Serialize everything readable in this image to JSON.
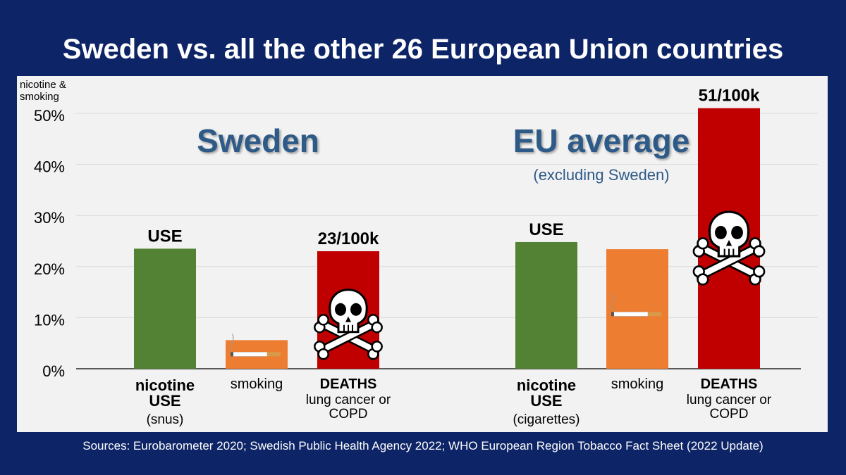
{
  "title": "Sweden vs. all the other 26 European Union countries",
  "sources": "Sources:  Eurobarometer 2020; Swedish Public Health Agency 2022; WHO European Region Tobacco Fact Sheet (2022 Update)",
  "colors": {
    "background": "#0d2466",
    "panel": "#f2f2f2",
    "use": "#548235",
    "smoking": "#ed7d31",
    "deaths": "#c00000",
    "group_title": "#2e5a88"
  },
  "chart_data": {
    "type": "bar",
    "ylabel": "nicotine & smoking",
    "ylim": [
      0,
      55
    ],
    "yticks": [
      0,
      10,
      20,
      30,
      40,
      50
    ],
    "ytick_labels": [
      "0%",
      "10%",
      "20%",
      "30%",
      "40%",
      "50%"
    ],
    "groups": [
      {
        "name": "Sweden",
        "subtitle": "",
        "bars": [
          {
            "key": "use",
            "value": 23.5,
            "top_label": "USE",
            "xlabel_bold": "nicotine USE",
            "xlabel_sub": "(snus)",
            "color": "#548235",
            "icon": "none"
          },
          {
            "key": "smoking",
            "value": 5.6,
            "top_label": "",
            "xlabel_bold": "",
            "xlabel_plain": "smoking",
            "xlabel_sub": "",
            "color": "#ed7d31",
            "icon": "cigarette-icon"
          },
          {
            "key": "deaths",
            "value": 23,
            "top_label": "23/100k",
            "xlabel_bold": "DEATHS",
            "xlabel_sub": "lung cancer or COPD",
            "color": "#c00000",
            "icon": "skull-crossbones-icon"
          }
        ]
      },
      {
        "name": "EU average",
        "subtitle": "(excluding Sweden)",
        "bars": [
          {
            "key": "use",
            "value": 24.8,
            "top_label": "USE",
            "xlabel_bold": "nicotine USE",
            "xlabel_sub": "(cigarettes)",
            "color": "#548235",
            "icon": "none"
          },
          {
            "key": "smoking",
            "value": 23.4,
            "top_label": "",
            "xlabel_bold": "",
            "xlabel_plain": "smoking",
            "xlabel_sub": "",
            "color": "#ed7d31",
            "icon": "cigarette-icon"
          },
          {
            "key": "deaths",
            "value": 51,
            "top_label": "51/100k",
            "xlabel_bold": "DEATHS",
            "xlabel_sub": "lung cancer or COPD",
            "color": "#c00000",
            "icon": "skull-crossbones-icon"
          }
        ]
      }
    ]
  }
}
